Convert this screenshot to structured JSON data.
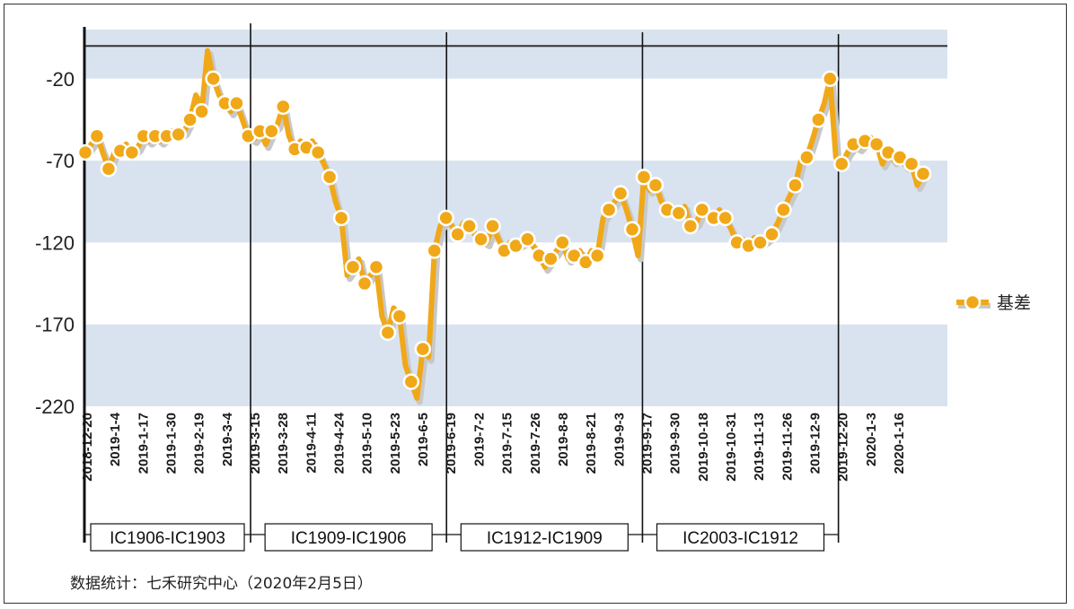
{
  "chart_data": {
    "type": "line",
    "title": "",
    "xlabel": "",
    "ylabel": "",
    "ylim": [
      -220,
      10
    ],
    "y_ticks": [
      -20,
      -70,
      -120,
      -170,
      -220
    ],
    "x_tick_labels": [
      "2018-12-20",
      "2019-1-4",
      "2019-1-17",
      "2019-1-30",
      "2019-2-19",
      "2019-3-4",
      "2019-3-15",
      "2019-3-28",
      "2019-4-11",
      "2019-4-24",
      "2019-5-10",
      "2019-5-23",
      "2019-6-5",
      "2019-6-19",
      "2019-7-2",
      "2019-7-15",
      "2019-7-26",
      "2019-8-8",
      "2019-8-21",
      "2019-9-3",
      "2019-9-17",
      "2019-9-30",
      "2019-10-18",
      "2019-10-31",
      "2019-11-13",
      "2019-11-26",
      "2019-12-9",
      "2019-12-20",
      "2020-1-3",
      "2020-1-16"
    ],
    "reference_line_y": 0,
    "band_colors": [
      "#d9e3ef",
      "#ffffff"
    ],
    "series": [
      {
        "name": "基差",
        "color": "#f0a818",
        "values": [
          -65,
          -60,
          -55,
          -65,
          -75,
          -65,
          -64,
          -60,
          -65,
          -62,
          -55,
          -58,
          -55,
          -58,
          -55,
          -52,
          -54,
          -52,
          -45,
          -30,
          -40,
          -3,
          -20,
          -30,
          -35,
          -40,
          -35,
          -45,
          -55,
          -57,
          -52,
          -60,
          -52,
          -48,
          -37,
          -55,
          -63,
          -58,
          -62,
          -58,
          -65,
          -72,
          -80,
          -95,
          -105,
          -140,
          -135,
          -130,
          -145,
          -140,
          -135,
          -165,
          -175,
          -160,
          -165,
          -195,
          -205,
          -215,
          -185,
          -190,
          -125,
          -110,
          -105,
          -110,
          -115,
          -108,
          -110,
          -115,
          -118,
          -120,
          -110,
          -118,
          -125,
          -120,
          -122,
          -120,
          -118,
          -122,
          -128,
          -135,
          -130,
          -125,
          -120,
          -130,
          -128,
          -125,
          -132,
          -125,
          -128,
          -105,
          -100,
          -95,
          -90,
          -100,
          -112,
          -128,
          -80,
          -88,
          -85,
          -95,
          -100,
          -100,
          -102,
          -98,
          -110,
          -108,
          -100,
          -102,
          -105,
          -100,
          -105,
          -112,
          -120,
          -118,
          -122,
          -117,
          -120,
          -118,
          -115,
          -108,
          -100,
          -92,
          -85,
          -70,
          -68,
          -57,
          -45,
          -35,
          -20,
          -68,
          -72,
          -65,
          -60,
          -62,
          -58,
          -56,
          -60,
          -72,
          -65,
          -70,
          -68,
          -73,
          -72,
          -85,
          -78
        ]
      }
    ],
    "period_boundaries": [
      {
        "after_tick": "2018-12-20"
      },
      {
        "after_tick": "2019-3-15"
      },
      {
        "after_tick": "2019-6-19"
      },
      {
        "after_tick": "2019-9-17"
      },
      {
        "after_tick": "2019-12-20"
      }
    ],
    "periods": [
      "IC1906-IC1903",
      "IC1909-IC1906",
      "IC1912-IC1909",
      "IC2003-IC1912"
    ],
    "legend_position": "right"
  },
  "source_note": "数据统计：七禾研究中心（2020年2月5日）"
}
